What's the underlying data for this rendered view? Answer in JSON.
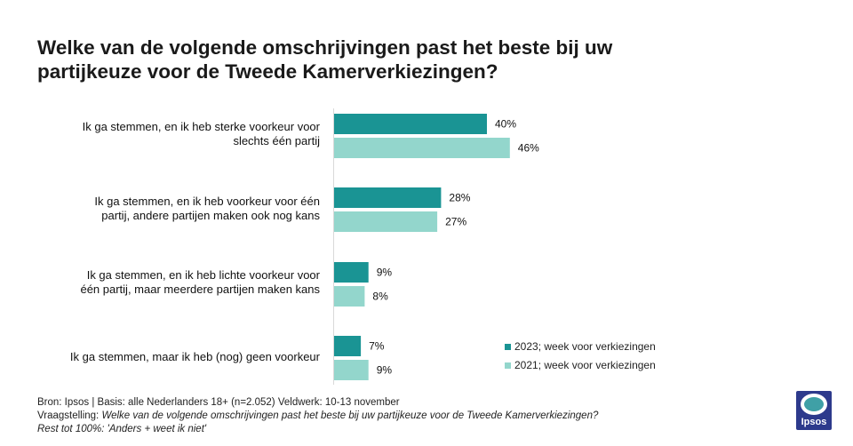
{
  "title": {
    "line1": "Welke van de volgende omschrijvingen past het beste bij uw",
    "line2": "partijkeuze voor de Tweede Kamerverkiezingen?"
  },
  "chart_data": {
    "type": "bar",
    "orientation": "horizontal",
    "categories": [
      [
        "Ik ga stemmen, en ik heb sterke voorkeur voor",
        "slechts één partij"
      ],
      [
        "Ik ga stemmen, en ik heb voorkeur voor één",
        "partij, andere partijen maken ook nog kans"
      ],
      [
        "Ik ga stemmen, en ik heb lichte voorkeur voor",
        "één partij, maar meerdere partijen maken kans"
      ],
      [
        "Ik ga stemmen, maar ik heb (nog) geen voorkeur"
      ]
    ],
    "series": [
      {
        "name": "2023; week voor verkiezingen",
        "color": "#1a9494",
        "values": [
          40,
          28,
          9,
          7
        ],
        "labels": [
          "40%",
          "28%",
          "9%",
          "7%"
        ]
      },
      {
        "name": "2021; week voor verkiezingen",
        "color": "#93d6cc",
        "values": [
          46,
          27,
          8,
          9
        ],
        "labels": [
          "46%",
          "27%",
          "8%",
          "9%"
        ]
      }
    ],
    "value_suffix": "%",
    "legend_position": "bottom-right",
    "grid": false
  },
  "footer": {
    "line1": "Bron: Ipsos | Basis: alle Nederlanders  18+ (n=2.052)  Veldwerk:  10-13  november",
    "line2_prefix": "Vraagstelling: ",
    "line2_italic": "Welke van de volgende  omschrijvingen  past het beste bij uw partijkeuze voor de Tweede  Kamerverkiezingen?",
    "line3": "Rest tot 100%: 'Anders + weet ik niet'"
  },
  "logo": {
    "text": "Ipsos"
  }
}
